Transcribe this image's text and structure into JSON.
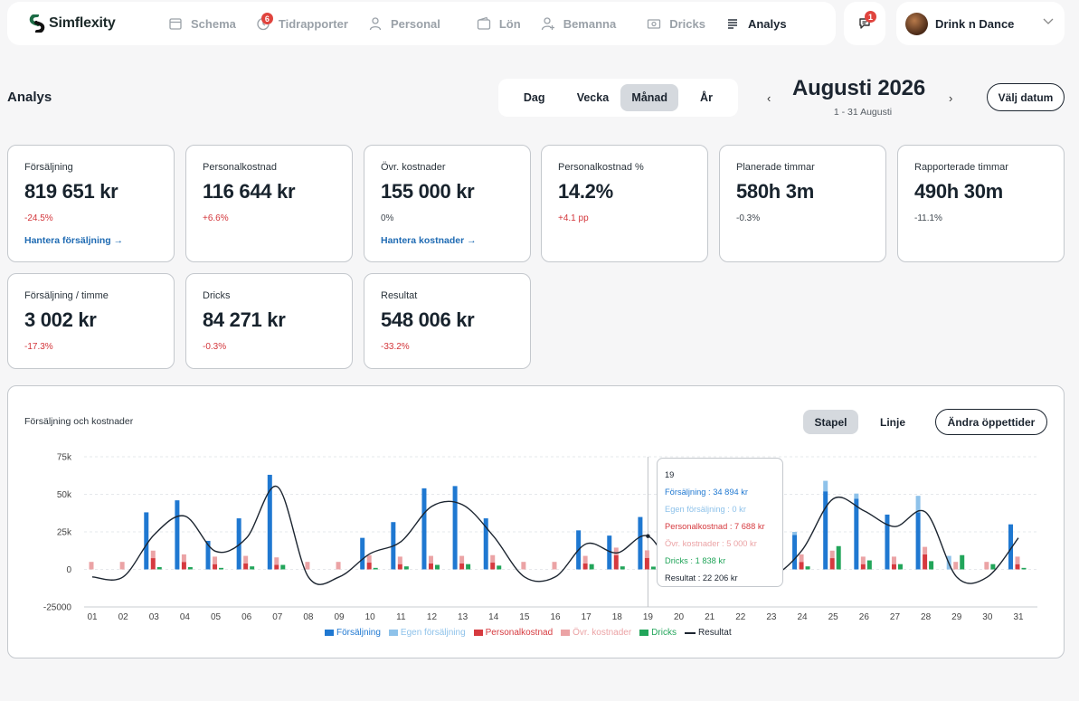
{
  "brand": {
    "name": "Simflexity"
  },
  "nav": {
    "items": [
      {
        "label": "Schema",
        "icon": "calendar-icon",
        "active": false
      },
      {
        "label": "Tidrapporter",
        "icon": "clock-icon",
        "active": false,
        "badge": "6"
      },
      {
        "label": "Personal",
        "icon": "person-icon",
        "active": false
      },
      {
        "label": "Lön",
        "icon": "wallet-icon",
        "active": false
      },
      {
        "label": "Bemanna",
        "icon": "add-person-icon",
        "active": false
      },
      {
        "label": "Dricks",
        "icon": "cash-icon",
        "active": false
      },
      {
        "label": "Analys",
        "icon": "list-icon",
        "active": true
      }
    ]
  },
  "notifications": {
    "badge": "1"
  },
  "venue": {
    "name": "Drink n Dance"
  },
  "header": {
    "title": "Analys",
    "period_tabs": [
      {
        "label": "Dag",
        "active": false
      },
      {
        "label": "Vecka",
        "active": false
      },
      {
        "label": "Månad",
        "active": true
      },
      {
        "label": "År",
        "active": false
      }
    ],
    "month": "Augusti 2026",
    "range": "1 - 31 Augusti",
    "pick_date": "Välj datum"
  },
  "kpis": [
    {
      "label": "Försäljning",
      "value": "819 651 kr",
      "delta": "-24.5%",
      "delta_type": "neg",
      "link": "Hantera försäljning →"
    },
    {
      "label": "Personalkostnad",
      "value": "116 644 kr",
      "delta": "+6.6%",
      "delta_type": "neg"
    },
    {
      "label": "Övr. kostnader",
      "value": "155 000 kr",
      "delta": "0%",
      "delta_type": "neutral",
      "link": "Hantera kostnader →"
    },
    {
      "label": "Personalkostnad %",
      "value": "14.2%",
      "delta": "+4.1 pp",
      "delta_type": "neg"
    },
    {
      "label": "Planerade timmar",
      "value": "580h 3m",
      "delta": "-0.3%",
      "delta_type": "neutral"
    },
    {
      "label": "Rapporterade timmar",
      "value": "490h 30m",
      "delta": "-11.1%",
      "delta_type": "neutral"
    },
    {
      "label": "Försäljning / timme",
      "value": "3 002 kr",
      "delta": "-17.3%",
      "delta_type": "neg"
    },
    {
      "label": "Dricks",
      "value": "84 271 kr",
      "delta": "-0.3%",
      "delta_type": "neg"
    },
    {
      "label": "Resultat",
      "value": "548 006 kr",
      "delta": "-33.2%",
      "delta_type": "neg"
    }
  ],
  "chart_panel": {
    "title": "Försäljning och kostnader",
    "type_tabs": [
      {
        "label": "Stapel",
        "active": true
      },
      {
        "label": "Linje",
        "active": false
      }
    ],
    "hours_button": "Ändra öppettider"
  },
  "tooltip": {
    "day": "19",
    "lines": [
      {
        "text": "Försäljning : 34 894 kr",
        "color": "#1f78d1"
      },
      {
        "text": "Egen försäljning : 0 kr",
        "color": "#8ec2ea"
      },
      {
        "text": "Personalkostnad : 7 688 kr",
        "color": "#d63a3f"
      },
      {
        "text": "Övr. kostnader : 5 000 kr",
        "color": "#eba3a5"
      },
      {
        "text": "Dricks : 1 838 kr",
        "color": "#22a55a"
      },
      {
        "text": "Resultat : 22 206 kr",
        "color": "#1c2530"
      }
    ]
  },
  "chart_data": {
    "type": "bar",
    "categories": [
      "01",
      "02",
      "03",
      "04",
      "05",
      "06",
      "07",
      "08",
      "09",
      "10",
      "11",
      "12",
      "13",
      "14",
      "15",
      "16",
      "17",
      "18",
      "19",
      "20",
      "21",
      "22",
      "23",
      "24",
      "25",
      "26",
      "27",
      "28",
      "29",
      "30",
      "31"
    ],
    "ylim": [
      -25000,
      75000
    ],
    "yticks": [
      75000,
      50000,
      25000,
      0,
      -25000
    ],
    "ytick_labels": [
      "75k",
      "50k",
      "25k",
      "0",
      "-25000"
    ],
    "grid": true,
    "legend_position": "bottom",
    "series": [
      {
        "name": "Försäljning",
        "kind": "bar",
        "color": "#1f78d1",
        "values": [
          0,
          0,
          38000,
          46000,
          19000,
          34000,
          63000,
          0,
          0,
          21000,
          31500,
          54000,
          55500,
          34000,
          0,
          0,
          26000,
          22500,
          34894,
          0,
          0,
          0,
          0,
          23000,
          52000,
          47000,
          36500,
          38000,
          0,
          0,
          30000
        ]
      },
      {
        "name": "Egen försäljning",
        "kind": "bar",
        "color": "#8ec2ea",
        "values": [
          0,
          0,
          0,
          0,
          0,
          0,
          0,
          0,
          0,
          0,
          0,
          0,
          0,
          0,
          0,
          0,
          0,
          0,
          0,
          0,
          0,
          0,
          0,
          2000,
          7000,
          3500,
          0,
          11000,
          9000,
          0,
          0
        ]
      },
      {
        "name": "Personalkostnad",
        "kind": "bar",
        "color": "#d63a3f",
        "values": [
          0,
          0,
          7500,
          5000,
          3500,
          4000,
          3000,
          0,
          0,
          4500,
          3500,
          4000,
          4000,
          4500,
          0,
          0,
          4000,
          9500,
          7688,
          0,
          0,
          0,
          0,
          5000,
          7500,
          3500,
          3500,
          10000,
          0,
          0,
          3500
        ]
      },
      {
        "name": "Övr. kostnader",
        "kind": "bar",
        "color": "#eba3a5",
        "values": [
          5000,
          5000,
          5000,
          5000,
          5000,
          5000,
          5000,
          5000,
          5000,
          5000,
          5000,
          5000,
          5000,
          5000,
          5000,
          5000,
          5000,
          5000,
          5000,
          0,
          0,
          0,
          0,
          5000,
          5000,
          5000,
          5000,
          5000,
          5000,
          5000,
          5000
        ]
      },
      {
        "name": "Dricks",
        "kind": "bar",
        "color": "#22a55a",
        "values": [
          0,
          0,
          1500,
          1500,
          1000,
          2000,
          3000,
          0,
          0,
          1000,
          2000,
          3000,
          3500,
          2500,
          0,
          0,
          3500,
          2000,
          1838,
          0,
          0,
          0,
          0,
          2000,
          15500,
          6000,
          3500,
          5500,
          9500,
          3500,
          1000
        ]
      },
      {
        "name": "Resultat",
        "kind": "line",
        "color": "#1c2530",
        "values": [
          -5000,
          -5000,
          23000,
          35500,
          12000,
          21000,
          55000,
          -5000,
          -5000,
          10500,
          18500,
          42000,
          43000,
          22000,
          -5000,
          -5000,
          17000,
          11000,
          22206,
          -5000,
          -5000,
          -5000,
          -5000,
          13000,
          47000,
          39000,
          28500,
          38000,
          -5000,
          -5000,
          21000
        ]
      }
    ]
  }
}
